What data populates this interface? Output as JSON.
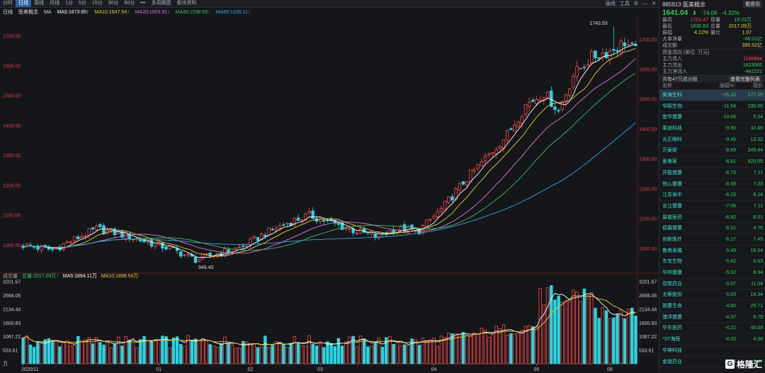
{
  "toolbar": {
    "tabs": [
      "分时",
      "日线",
      "周线",
      "月线",
      "1分",
      "5分",
      "15分",
      "30分",
      "60分",
      "•••",
      "多周期图",
      "板块资料"
    ],
    "active_tab": 1,
    "right_items": [
      "画线",
      "工具"
    ]
  },
  "ma_line": {
    "label": "日线",
    "name": "医美概念",
    "ma": "MA",
    "items": [
      {
        "text": "MA5:1673.65↑",
        "color": "#ffffff"
      },
      {
        "text": "MA10:1647.54↑",
        "color": "#e8d13a"
      },
      {
        "text": "MA20:1603.91↑",
        "color": "#e07ad8"
      },
      {
        "text": "MA30:1538.65↑",
        "color": "#3fbf5f"
      },
      {
        "text": "MA60:1339.11↑",
        "color": "#3fa4e0"
      }
    ]
  },
  "volume_line": {
    "items": [
      {
        "text": "成交量",
        "color": "#aaaaaa"
      },
      {
        "text": "总量:2017.09万↑",
        "color": "#2fd35b"
      },
      {
        "text": "MA5:1894.11万",
        "color": "#ffffff"
      },
      {
        "text": "MA10:1898.54万",
        "color": "#e8d13a"
      }
    ]
  },
  "header": {
    "code_name": "885913 医美概念",
    "button": "看资讯",
    "price": "1641.04",
    "change": "-74.06",
    "change_pct": "-4.32%"
  },
  "stats": [
    {
      "k1": "最高",
      "v1": "1701.47",
      "k2": "现量",
      "v2": "19.23万",
      "c1": "red",
      "c2": "green"
    },
    {
      "k1": "最低",
      "v1": "1630.83",
      "k2": "总量",
      "v2": "2017.09万",
      "c1": "green",
      "c2": "yellow"
    },
    {
      "k1": "振幅",
      "v1": "4.12%",
      "k2": "量比",
      "v2": "1.07",
      "c1": "yellow",
      "c2": "yellow"
    }
  ],
  "flows_top": [
    {
      "k": "大单净量",
      "v": "-46.01亿",
      "c": "green"
    },
    {
      "k": "成交额",
      "v": "395.52亿",
      "c": "yellow"
    }
  ],
  "capital": {
    "title": "资金流向 (单位: 万元)",
    "rows": [
      {
        "k": "主力流入",
        "v": "1180844",
        "c": "red"
      },
      {
        "k": "主力流出",
        "v": "1623065",
        "c": "green"
      },
      {
        "k": "主力净流入",
        "v": "-442221",
        "c": "green"
      }
    ]
  },
  "constituents": {
    "title": "共有47只成分股",
    "button": "查看完整列表",
    "headers": [
      "名称",
      "涨幅%↑",
      "现价"
    ],
    "rows": [
      {
        "name": "昊海生科",
        "chg": "-15.15",
        "price": "177.25",
        "sel": true
      },
      {
        "name": "华熙生物",
        "chg": "-11.54",
        "price": "238.00"
      },
      {
        "name": "宜华健康",
        "chg": "-10.06",
        "price": "5.54"
      },
      {
        "name": "莱迪科技",
        "chg": "-9.90",
        "price": "32.49"
      },
      {
        "name": "光正眼科",
        "chg": "-9.45",
        "price": "13.32"
      },
      {
        "name": "贝泰妮",
        "chg": "-8.89",
        "price": "245.44"
      },
      {
        "name": "爱美客",
        "chg": "-8.81",
        "price": "620.05"
      },
      {
        "name": "开能健康",
        "chg": "-8.73",
        "price": "7.11"
      },
      {
        "name": "悦心健康",
        "chg": "-8.58",
        "price": "7.03"
      },
      {
        "name": "江苏吴中",
        "chg": "-8.23",
        "price": "8.14"
      },
      {
        "name": "长江健康",
        "chg": "-7.06",
        "price": "7.11"
      },
      {
        "name": "易普医药",
        "chg": "-6.82",
        "price": "6.01"
      },
      {
        "name": "德展健康",
        "chg": "-6.31",
        "price": "4.75"
      },
      {
        "name": "创新医疗",
        "chg": "-6.17",
        "price": "7.45"
      },
      {
        "name": "鲁商发展",
        "chg": "-5.49",
        "price": "16.54"
      },
      {
        "name": "东宝生物",
        "chg": "-5.42",
        "price": "6.63"
      },
      {
        "name": "华邦健康",
        "chg": "-5.32",
        "price": "6.94"
      },
      {
        "name": "双鹭药业",
        "chg": "-5.07",
        "price": "11.04"
      },
      {
        "name": "尤萘股份",
        "chg": "-5.03",
        "price": "14.34"
      },
      {
        "name": "致康生命",
        "chg": "-4.60",
        "price": "25.71"
      },
      {
        "name": "澳洋健康",
        "chg": "-4.37",
        "price": "6.79"
      },
      {
        "name": "华东医药",
        "chg": "-4.22",
        "price": "48.09"
      },
      {
        "name": "*ST海医",
        "chg": "-4.00",
        "price": "4.08"
      },
      {
        "name": "华神科技",
        "chg": "",
        "price": ""
      },
      {
        "name": "金陵药业",
        "chg": "-3.88",
        "price": "7.67"
      }
    ]
  },
  "chart_data": {
    "type": "candlestick",
    "price_ticks": [
      "1700.00",
      "1600.00",
      "1500.00",
      "1400.00",
      "1300.00",
      "1200.00",
      "1100.00",
      "1000.00"
    ],
    "price_range": [
      945,
      1760
    ],
    "volume_ticks": [
      "3201.67",
      "2668.06",
      "2134.44",
      "1600.83",
      "1067.22",
      "533.61"
    ],
    "volume_range": [
      0,
      3300
    ],
    "volume_unit": "万",
    "x_labels": [
      "2020/11",
      "01",
      "02",
      "03",
      "04",
      "05",
      "06"
    ],
    "x_label_index": [
      0,
      37,
      62,
      81,
      112,
      140,
      160
    ],
    "annotations": [
      {
        "text": "1743.53",
        "index": 161,
        "value": 1743.53
      },
      {
        "text": "949.43",
        "index": 47,
        "value": 949.43
      }
    ],
    "ma_colors": {
      "ma5": "#ffffff",
      "ma10": "#e8d13a",
      "ma20": "#e07ad8",
      "ma30": "#3fbf5f",
      "ma60": "#3fa4e0"
    }
  },
  "watermark": {
    "logo": "G",
    "text": "格隆汇"
  }
}
